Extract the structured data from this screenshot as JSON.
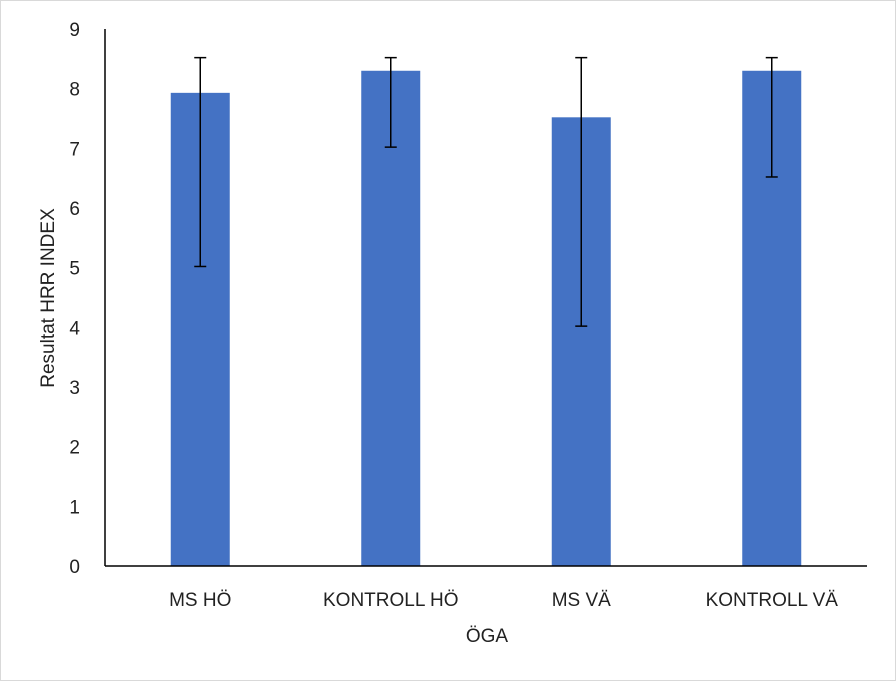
{
  "chart_data": {
    "type": "bar",
    "title": "",
    "xlabel": "ÖGA",
    "ylabel": "Resultat HRR INDEX",
    "categories": [
      "MS HÖ",
      "KONTROLL HÖ",
      "MS VÄ",
      "KONTROLL VÄ"
    ],
    "values": [
      7.93,
      8.3,
      7.52,
      8.3
    ],
    "error_low": [
      5.02,
      7.02,
      4.02,
      6.52
    ],
    "error_high": [
      8.52,
      8.52,
      8.52,
      8.52
    ],
    "ylim": [
      0,
      9
    ],
    "yticks": [
      "0",
      "1",
      "2",
      "3",
      "4",
      "5",
      "6",
      "7",
      "8",
      "9"
    ],
    "grid": false,
    "bar_color": "#4472c4",
    "error_color": "#000000",
    "axis_color": "#000000"
  }
}
